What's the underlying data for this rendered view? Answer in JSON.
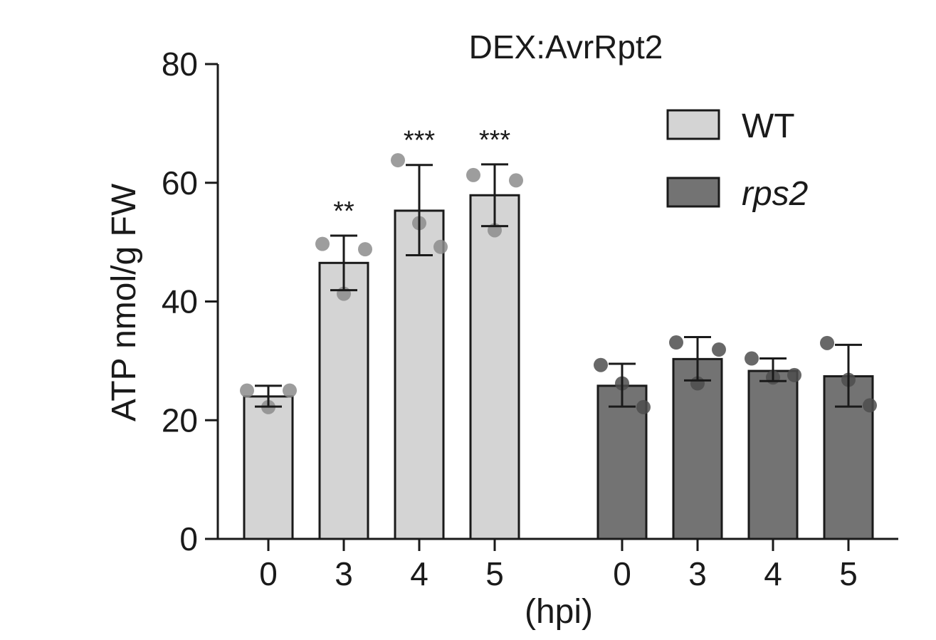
{
  "chart_data": {
    "type": "bar",
    "title": "DEX:AvrRpt2",
    "xlabel": "(hpi)",
    "ylabel": "ATP nmol/g FW",
    "ylim": [
      0,
      80
    ],
    "yticks": [
      0,
      20,
      40,
      60,
      80
    ],
    "legend_position": "top-right",
    "groups": [
      {
        "name": "WT",
        "color": "#d4d4d4",
        "italic": false,
        "bars": [
          {
            "x": "0",
            "value": 24.0,
            "error": [
              22.3,
              25.8
            ],
            "points": [
              25.0,
              22.2,
              25.0
            ],
            "sig": ""
          },
          {
            "x": "3",
            "value": 46.5,
            "error": [
              41.9,
              51.1
            ],
            "points": [
              49.7,
              41.3,
              48.8
            ],
            "sig": "**"
          },
          {
            "x": "4",
            "value": 55.3,
            "error": [
              47.8,
              63.0
            ],
            "points": [
              63.8,
              53.2,
              49.2
            ],
            "sig": "***"
          },
          {
            "x": "5",
            "value": 57.9,
            "error": [
              52.7,
              63.1
            ],
            "points": [
              61.3,
              52.0,
              60.4
            ],
            "sig": "***"
          }
        ]
      },
      {
        "name": "rps2",
        "color": "#737373",
        "italic": true,
        "bars": [
          {
            "x": "0",
            "value": 25.8,
            "error": [
              22.3,
              29.5
            ],
            "points": [
              29.3,
              26.2,
              22.2
            ],
            "sig": ""
          },
          {
            "x": "3",
            "value": 30.3,
            "error": [
              26.7,
              34.0
            ],
            "points": [
              33.1,
              26.2,
              31.9
            ],
            "sig": ""
          },
          {
            "x": "4",
            "value": 28.3,
            "error": [
              26.6,
              30.4
            ],
            "points": [
              30.4,
              27.2,
              27.6
            ],
            "sig": ""
          },
          {
            "x": "5",
            "value": 27.4,
            "error": [
              22.3,
              32.7
            ],
            "points": [
              33.0,
              26.8,
              22.5
            ],
            "sig": ""
          }
        ]
      }
    ]
  }
}
